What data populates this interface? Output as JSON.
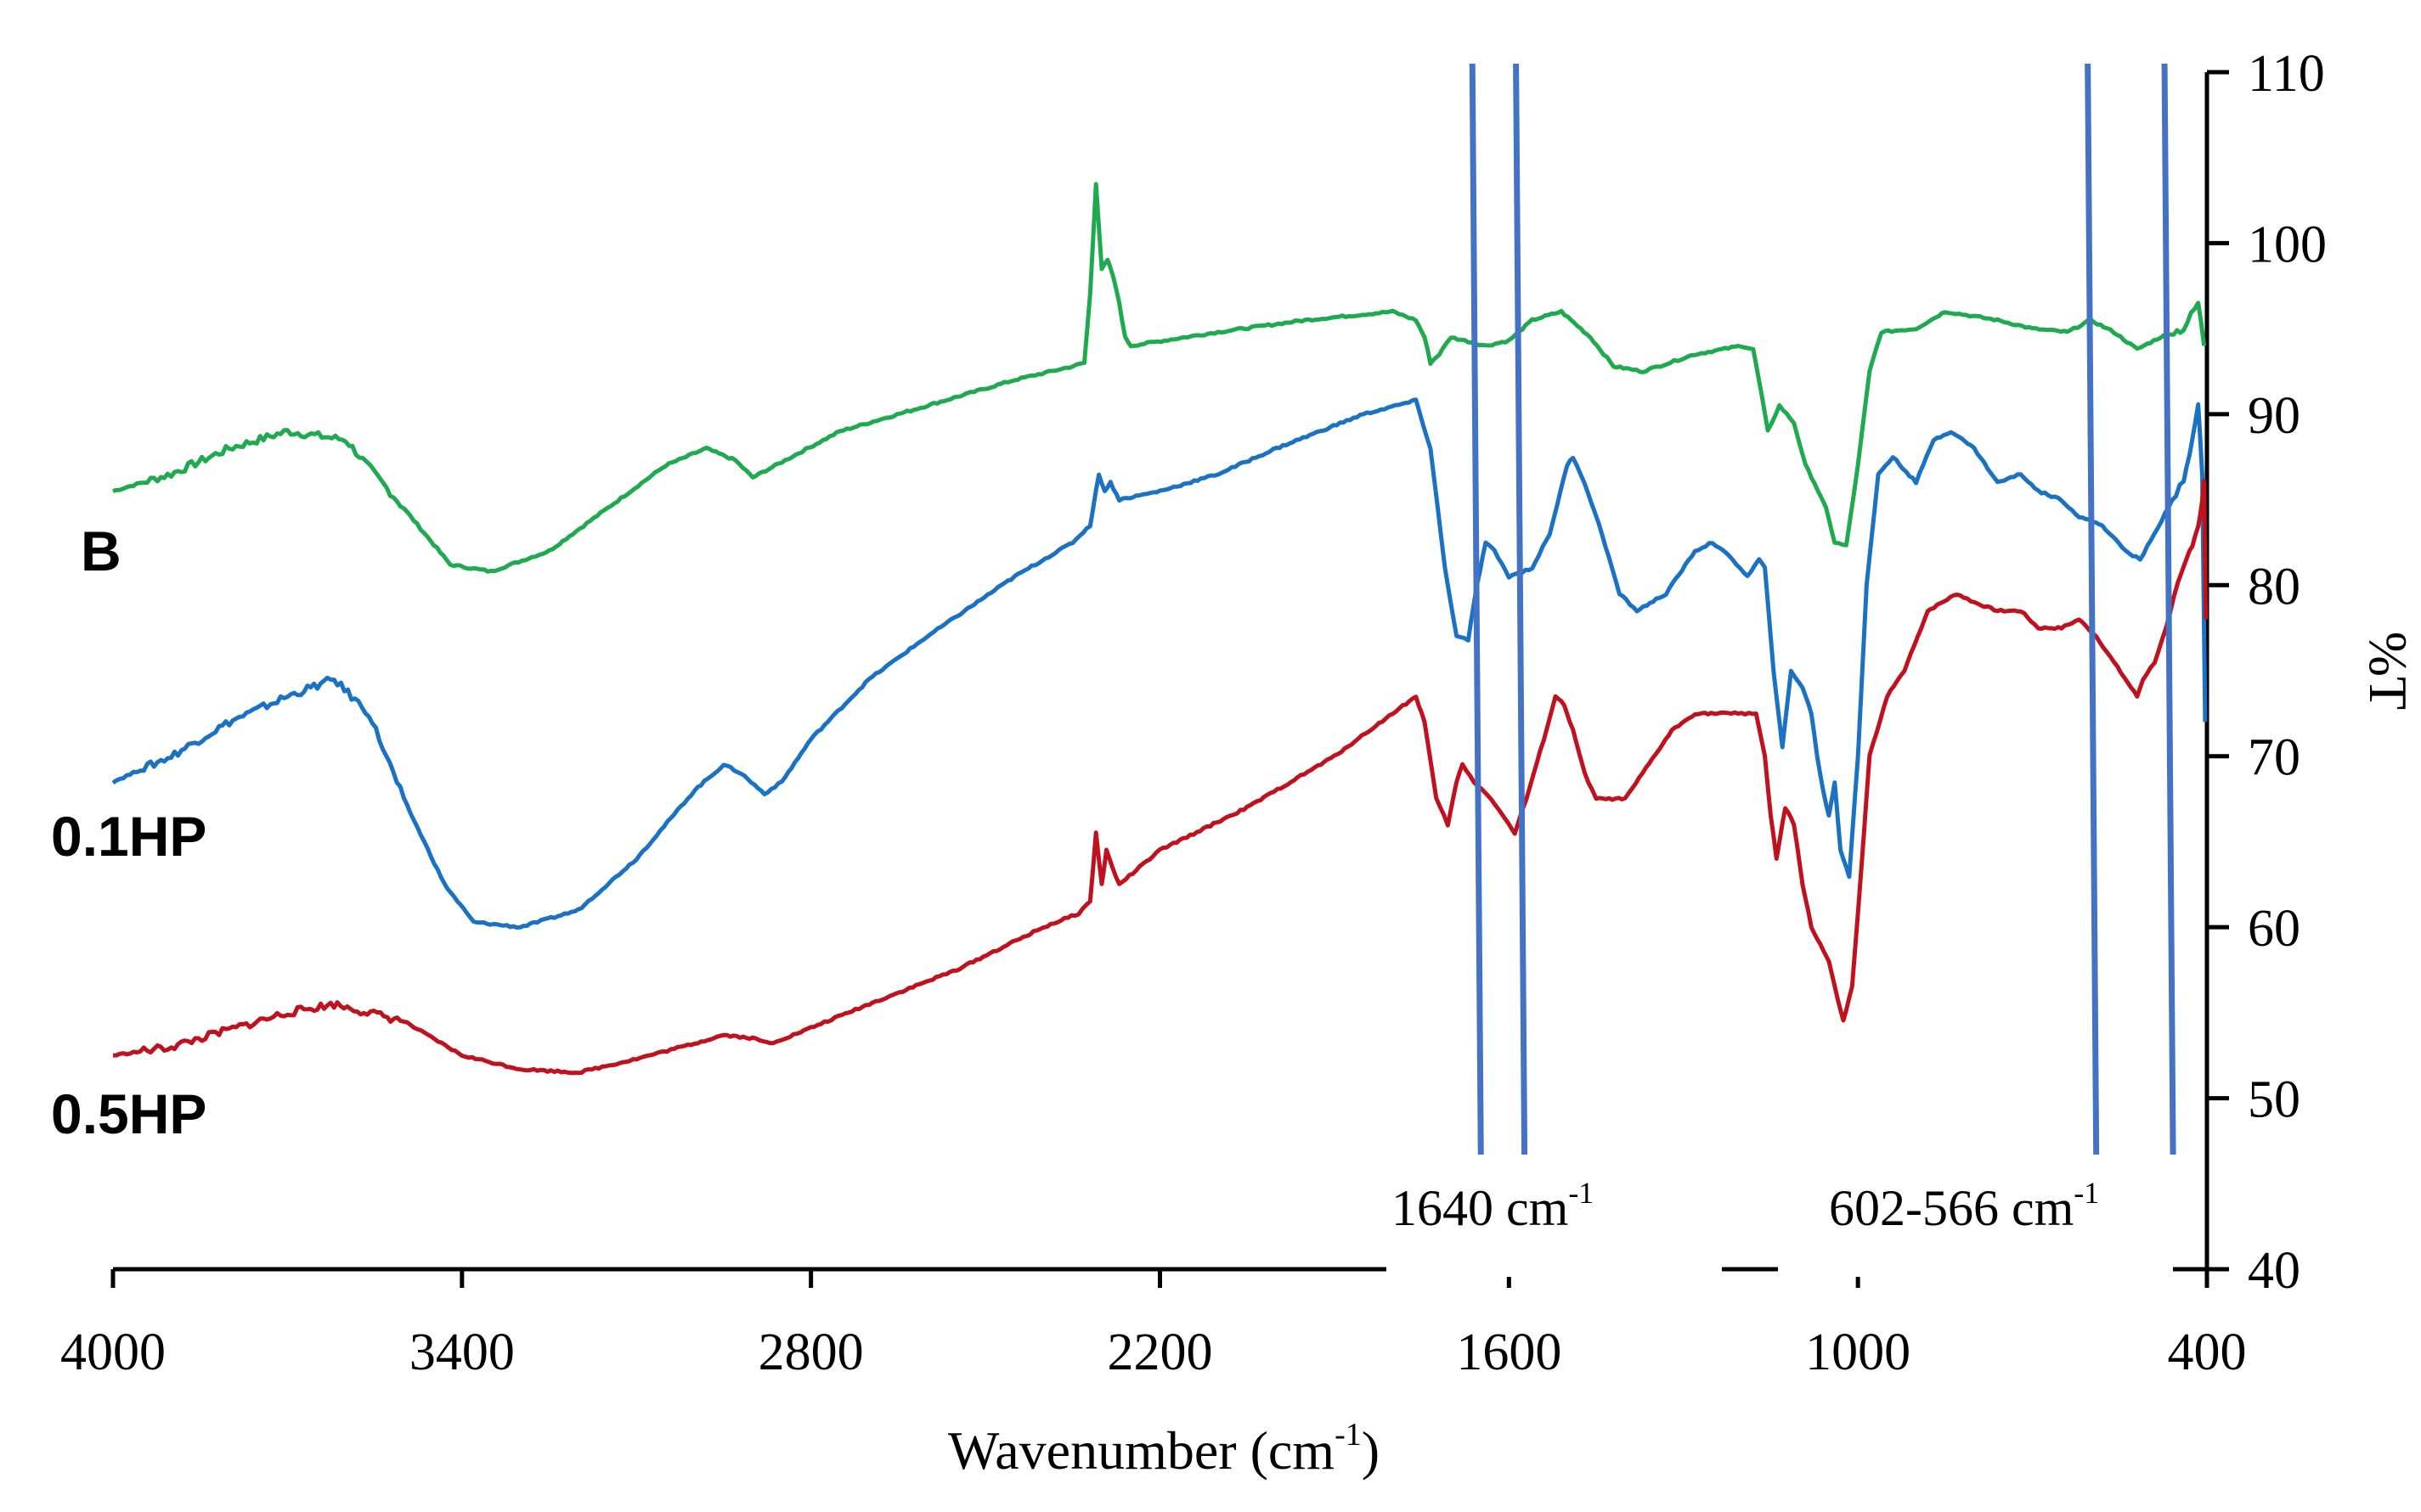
{
  "chart_data": {
    "type": "line",
    "title": "",
    "xlabel": "Wavenumber (cm",
    "xlabel_sup": "-1",
    "xlabel_end": ")",
    "ylabel": "%T",
    "xlim": [
      4000,
      400
    ],
    "ylim": [
      40,
      110
    ],
    "x_ticks": [
      4000,
      3400,
      2800,
      2200,
      1600,
      1000,
      400
    ],
    "x_tick_labels": [
      "4000",
      "3400",
      "2800",
      "2200",
      "1600",
      "1000",
      "400"
    ],
    "y_ticks": [
      40,
      50,
      60,
      70,
      80,
      90,
      100,
      110
    ],
    "y_tick_labels": [
      "40",
      "50",
      "60",
      "70",
      "80",
      "90",
      "100",
      "110"
    ],
    "reference_lines": [
      {
        "x": 1660,
        "label": "1640 cm",
        "label_sup": "-1",
        "group": "1640"
      },
      {
        "x": 1585,
        "group": "1640"
      },
      {
        "x": 602,
        "label": "602-566 cm",
        "label_sup": "-1",
        "group": "602-566"
      },
      {
        "x": 470,
        "group": "602-566"
      }
    ],
    "series": [
      {
        "name": "B",
        "color": "#1faa4f",
        "points": [
          [
            4000,
            85.5
          ],
          [
            3900,
            86.5
          ],
          [
            3800,
            88.0
          ],
          [
            3700,
            89.0
          ],
          [
            3600,
            88.5
          ],
          [
            3500,
            84.5
          ],
          [
            3420,
            81.2
          ],
          [
            3350,
            80.8
          ],
          [
            3250,
            82.0
          ],
          [
            3150,
            84.5
          ],
          [
            3050,
            87.0
          ],
          [
            2980,
            88.0
          ],
          [
            2930,
            87.3
          ],
          [
            2900,
            86.3
          ],
          [
            2850,
            87.2
          ],
          [
            2750,
            89.0
          ],
          [
            2600,
            90.5
          ],
          [
            2450,
            92.0
          ],
          [
            2350,
            92.8
          ],
          [
            2330,
            93.0
          ],
          [
            2320,
            97.0
          ],
          [
            2310,
            103.5
          ],
          [
            2300,
            98.5
          ],
          [
            2290,
            99.0
          ],
          [
            2280,
            98.0
          ],
          [
            2270,
            96.5
          ],
          [
            2260,
            94.5
          ],
          [
            2250,
            94.0
          ],
          [
            2100,
            94.8
          ],
          [
            1950,
            95.5
          ],
          [
            1800,
            96.0
          ],
          [
            1760,
            95.5
          ],
          [
            1745,
            94.5
          ],
          [
            1735,
            93.0
          ],
          [
            1720,
            93.5
          ],
          [
            1700,
            94.5
          ],
          [
            1640,
            94.0
          ],
          [
            1600,
            94.3
          ],
          [
            1560,
            95.5
          ],
          [
            1510,
            96.0
          ],
          [
            1460,
            94.5
          ],
          [
            1420,
            92.8
          ],
          [
            1370,
            92.5
          ],
          [
            1280,
            93.5
          ],
          [
            1200,
            94.0
          ],
          [
            1180,
            93.8
          ],
          [
            1165,
            91.0
          ],
          [
            1155,
            89.0
          ],
          [
            1135,
            90.5
          ],
          [
            1110,
            89.5
          ],
          [
            1090,
            87.0
          ],
          [
            1075,
            86.0
          ],
          [
            1055,
            84.5
          ],
          [
            1040,
            82.5
          ],
          [
            1020,
            82.3
          ],
          [
            1000,
            87.0
          ],
          [
            980,
            92.5
          ],
          [
            960,
            94.8
          ],
          [
            900,
            95.0
          ],
          [
            850,
            96.0
          ],
          [
            760,
            95.5
          ],
          [
            700,
            95.0
          ],
          [
            640,
            94.8
          ],
          [
            600,
            95.5
          ],
          [
            560,
            94.8
          ],
          [
            520,
            93.8
          ],
          [
            480,
            94.5
          ],
          [
            440,
            95.0
          ],
          [
            415,
            96.5
          ],
          [
            405,
            94.0
          ]
        ]
      },
      {
        "name": "0.1HP",
        "color": "#1b72c3",
        "points": [
          [
            4000,
            68.5
          ],
          [
            3900,
            70.0
          ],
          [
            3800,
            72.0
          ],
          [
            3700,
            73.5
          ],
          [
            3620,
            74.5
          ],
          [
            3560,
            72.5
          ],
          [
            3500,
            67.5
          ],
          [
            3430,
            62.5
          ],
          [
            3380,
            60.3
          ],
          [
            3300,
            60.0
          ],
          [
            3200,
            61.0
          ],
          [
            3100,
            64.0
          ],
          [
            3000,
            68.0
          ],
          [
            2950,
            69.5
          ],
          [
            2920,
            69.0
          ],
          [
            2880,
            67.8
          ],
          [
            2850,
            68.5
          ],
          [
            2800,
            71.0
          ],
          [
            2700,
            74.5
          ],
          [
            2600,
            77.0
          ],
          [
            2450,
            80.5
          ],
          [
            2350,
            82.5
          ],
          [
            2320,
            83.5
          ],
          [
            2305,
            86.5
          ],
          [
            2295,
            85.5
          ],
          [
            2285,
            86.0
          ],
          [
            2270,
            85.0
          ],
          [
            2200,
            85.5
          ],
          [
            2100,
            86.5
          ],
          [
            2000,
            88.0
          ],
          [
            1850,
            90.0
          ],
          [
            1760,
            90.8
          ],
          [
            1735,
            88.0
          ],
          [
            1710,
            81.0
          ],
          [
            1690,
            77.0
          ],
          [
            1670,
            76.8
          ],
          [
            1655,
            80.0
          ],
          [
            1640,
            82.5
          ],
          [
            1625,
            82.0
          ],
          [
            1600,
            80.5
          ],
          [
            1560,
            81.0
          ],
          [
            1530,
            83.0
          ],
          [
            1500,
            87.0
          ],
          [
            1490,
            87.5
          ],
          [
            1470,
            86.0
          ],
          [
            1440,
            83.0
          ],
          [
            1410,
            79.5
          ],
          [
            1380,
            78.5
          ],
          [
            1330,
            79.5
          ],
          [
            1280,
            82.0
          ],
          [
            1250,
            82.5
          ],
          [
            1215,
            81.5
          ],
          [
            1190,
            80.5
          ],
          [
            1170,
            81.5
          ],
          [
            1160,
            81.0
          ],
          [
            1145,
            75.0
          ],
          [
            1130,
            70.5
          ],
          [
            1115,
            75.0
          ],
          [
            1095,
            74.0
          ],
          [
            1080,
            72.5
          ],
          [
            1070,
            70.0
          ],
          [
            1060,
            68.0
          ],
          [
            1050,
            66.5
          ],
          [
            1040,
            68.5
          ],
          [
            1030,
            64.5
          ],
          [
            1015,
            63.0
          ],
          [
            1000,
            70.0
          ],
          [
            985,
            80.0
          ],
          [
            965,
            86.5
          ],
          [
            940,
            87.5
          ],
          [
            900,
            86.0
          ],
          [
            870,
            88.5
          ],
          [
            840,
            89.0
          ],
          [
            800,
            88.0
          ],
          [
            760,
            86.0
          ],
          [
            720,
            86.5
          ],
          [
            690,
            85.5
          ],
          [
            650,
            85.0
          ],
          [
            620,
            84.0
          ],
          [
            580,
            83.5
          ],
          [
            540,
            82.0
          ],
          [
            515,
            81.5
          ],
          [
            490,
            83.0
          ],
          [
            460,
            85.0
          ],
          [
            440,
            86.0
          ],
          [
            425,
            88.5
          ],
          [
            415,
            90.5
          ],
          [
            408,
            86.5
          ],
          [
            403,
            72.0
          ]
        ]
      },
      {
        "name": "0.5HP",
        "color": "#c0121e",
        "points": [
          [
            4000,
            52.5
          ],
          [
            3900,
            53.0
          ],
          [
            3800,
            54.0
          ],
          [
            3700,
            55.0
          ],
          [
            3620,
            55.5
          ],
          [
            3500,
            54.5
          ],
          [
            3400,
            52.5
          ],
          [
            3300,
            51.7
          ],
          [
            3200,
            51.5
          ],
          [
            3100,
            52.3
          ],
          [
            3000,
            53.2
          ],
          [
            2950,
            53.7
          ],
          [
            2900,
            53.5
          ],
          [
            2870,
            53.2
          ],
          [
            2830,
            53.7
          ],
          [
            2700,
            55.5
          ],
          [
            2550,
            57.5
          ],
          [
            2400,
            60.0
          ],
          [
            2340,
            60.8
          ],
          [
            2320,
            61.5
          ],
          [
            2310,
            65.5
          ],
          [
            2300,
            62.5
          ],
          [
            2292,
            64.5
          ],
          [
            2282,
            63.5
          ],
          [
            2270,
            62.5
          ],
          [
            2200,
            64.5
          ],
          [
            2050,
            67.0
          ],
          [
            1900,
            70.0
          ],
          [
            1800,
            72.5
          ],
          [
            1760,
            73.5
          ],
          [
            1745,
            72.0
          ],
          [
            1725,
            67.5
          ],
          [
            1705,
            66.0
          ],
          [
            1690,
            68.5
          ],
          [
            1680,
            69.5
          ],
          [
            1660,
            68.5
          ],
          [
            1630,
            67.5
          ],
          [
            1600,
            66.0
          ],
          [
            1590,
            65.5
          ],
          [
            1570,
            67.5
          ],
          [
            1540,
            71.0
          ],
          [
            1520,
            73.5
          ],
          [
            1505,
            73.0
          ],
          [
            1490,
            71.5
          ],
          [
            1470,
            69.0
          ],
          [
            1450,
            67.5
          ],
          [
            1400,
            67.5
          ],
          [
            1370,
            69.0
          ],
          [
            1320,
            71.5
          ],
          [
            1280,
            72.5
          ],
          [
            1230,
            72.5
          ],
          [
            1200,
            72.5
          ],
          [
            1175,
            72.5
          ],
          [
            1160,
            70.0
          ],
          [
            1150,
            66.5
          ],
          [
            1140,
            64.0
          ],
          [
            1125,
            67.0
          ],
          [
            1110,
            66.0
          ],
          [
            1095,
            62.5
          ],
          [
            1080,
            60.0
          ],
          [
            1065,
            59.0
          ],
          [
            1050,
            58.0
          ],
          [
            1040,
            56.5
          ],
          [
            1025,
            54.5
          ],
          [
            1010,
            56.5
          ],
          [
            995,
            63.0
          ],
          [
            980,
            70.0
          ],
          [
            950,
            73.5
          ],
          [
            920,
            75.0
          ],
          [
            880,
            78.5
          ],
          [
            830,
            79.5
          ],
          [
            800,
            79.0
          ],
          [
            760,
            78.5
          ],
          [
            720,
            78.5
          ],
          [
            690,
            77.5
          ],
          [
            650,
            77.5
          ],
          [
            620,
            78.0
          ],
          [
            590,
            77.0
          ],
          [
            560,
            75.5
          ],
          [
            530,
            74.0
          ],
          [
            520,
            73.5
          ],
          [
            510,
            74.5
          ],
          [
            490,
            75.5
          ],
          [
            470,
            77.5
          ],
          [
            450,
            80.0
          ],
          [
            430,
            82.0
          ],
          [
            415,
            83.5
          ],
          [
            408,
            85.0
          ],
          [
            405,
            86.0
          ],
          [
            402,
            78.0
          ]
        ]
      }
    ]
  }
}
